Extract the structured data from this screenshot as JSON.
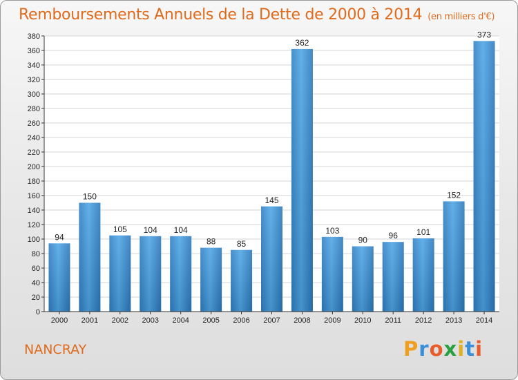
{
  "title": "Remboursements Annuels de la Dette de 2000 à 2014",
  "unit": "(en milliers d'€)",
  "commune": "NANCRAY",
  "brand": {
    "letters": [
      "P",
      "r",
      "o",
      "x",
      "i",
      "t",
      "i"
    ],
    "colors": [
      "#f0a020",
      "#3a8fd8",
      "#e85c2a",
      "#2aa040",
      "#e0b020",
      "#3a8fd8",
      "#e85c2a"
    ]
  },
  "chart_data": {
    "type": "bar",
    "categories": [
      "2000",
      "2001",
      "2002",
      "2003",
      "2004",
      "2005",
      "2006",
      "2007",
      "2008",
      "2009",
      "2010",
      "2011",
      "2012",
      "2013",
      "2014"
    ],
    "values": [
      94,
      150,
      105,
      104,
      104,
      88,
      85,
      145,
      362,
      103,
      90,
      96,
      101,
      152,
      373
    ],
    "ylim": [
      0,
      380
    ],
    "yticks": [
      0,
      20,
      40,
      60,
      80,
      100,
      120,
      140,
      160,
      180,
      200,
      220,
      240,
      260,
      280,
      300,
      320,
      340,
      360,
      380
    ],
    "grid": true,
    "bar_color": "#3d97dc"
  }
}
